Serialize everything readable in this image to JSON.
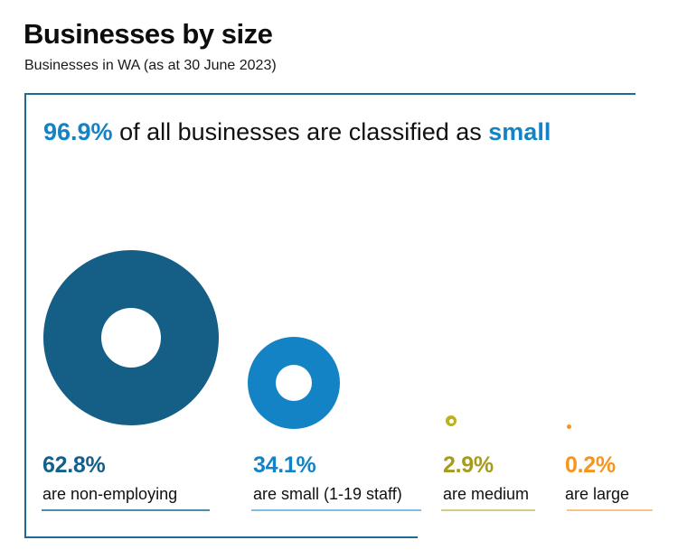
{
  "header": {
    "title": "Businesses by size",
    "subtitle": "Businesses in WA (as at 30 June 2023)"
  },
  "headline": {
    "value": "96.9%",
    "text": " of all businesses are classified as ",
    "keyword": "small"
  },
  "columns": [
    {
      "value": "62.8%",
      "label": "are non-employing",
      "value_color": "#14608A",
      "donut_color": "#155E86",
      "underline_color": "#4A8FAE"
    },
    {
      "value": "34.1%",
      "label": "are small (1-19 staff)",
      "value_color": "#1483C5",
      "donut_color": "#1483C5",
      "underline_color": "#7FBDE6"
    },
    {
      "value": "2.9%",
      "label": "are medium",
      "value_color": "#A79B1C",
      "donut_color": "#BFB01E",
      "underline_color": "#D6CD84"
    },
    {
      "value": "0.2%",
      "label": "are large",
      "value_color": "#F7941D",
      "donut_color": "#F7941D",
      "underline_color": "#FBC386"
    }
  ],
  "colors": {
    "panel_border": "#1D6B95",
    "headline_accent": "#1483C5",
    "text": "#111111"
  },
  "chart_data": {
    "type": "proportional-area-donut",
    "title": "Businesses by size",
    "subtitle": "Businesses in WA (as at 30 June 2023)",
    "annotation": "96.9% of all businesses are classified as small",
    "categories": [
      "non-employing",
      "small (1-19 staff)",
      "medium",
      "large"
    ],
    "values": [
      62.8,
      34.1,
      2.9,
      0.2
    ],
    "unit": "percent",
    "colors": [
      "#155E86",
      "#1483C5",
      "#BFB01E",
      "#F7941D"
    ],
    "legend_position": "below-shapes",
    "grid": false
  }
}
